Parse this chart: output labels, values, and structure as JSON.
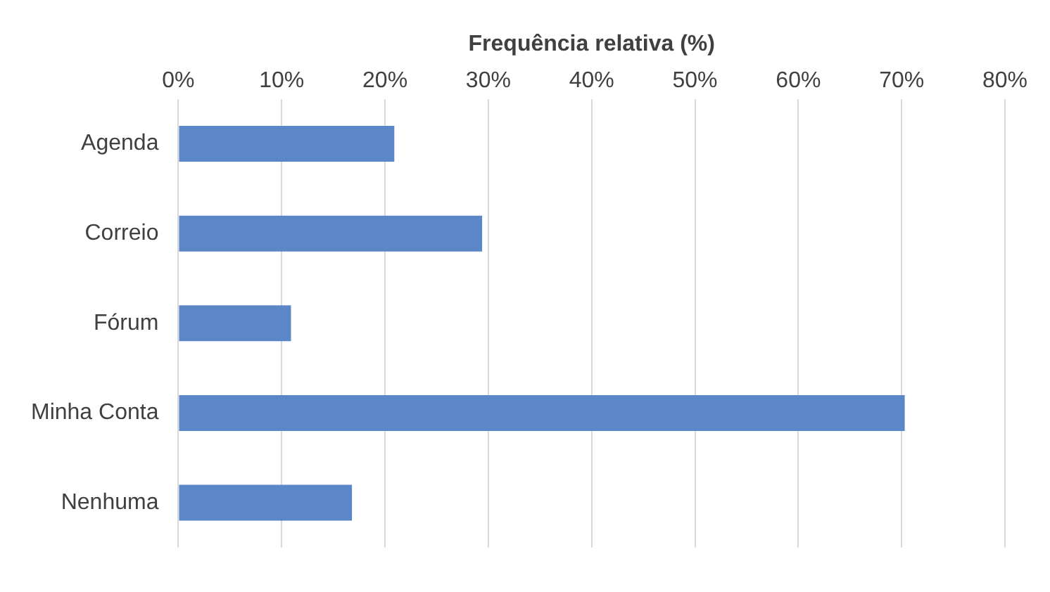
{
  "chart_data": {
    "type": "bar",
    "orientation": "horizontal",
    "xlabel": "Frequência relativa (%)",
    "categories": [
      "Agenda",
      "Correio",
      "Fórum",
      "Minha Conta",
      "Nenhuma"
    ],
    "values": [
      20.9,
      29.4,
      10.9,
      70.3,
      16.8
    ],
    "color": "#5b87c9",
    "xlim": [
      0,
      80
    ],
    "xticks": [
      {
        "value": 0,
        "label": "0%"
      },
      {
        "value": 10,
        "label": "10%"
      },
      {
        "value": 20,
        "label": "20%"
      },
      {
        "value": 30,
        "label": "30%"
      },
      {
        "value": 40,
        "label": "40%"
      },
      {
        "value": 50,
        "label": "50%"
      },
      {
        "value": 60,
        "label": "60%"
      },
      {
        "value": 70,
        "label": "70%"
      },
      {
        "value": 80,
        "label": "80%"
      }
    ],
    "grid": "x",
    "legend": false
  }
}
